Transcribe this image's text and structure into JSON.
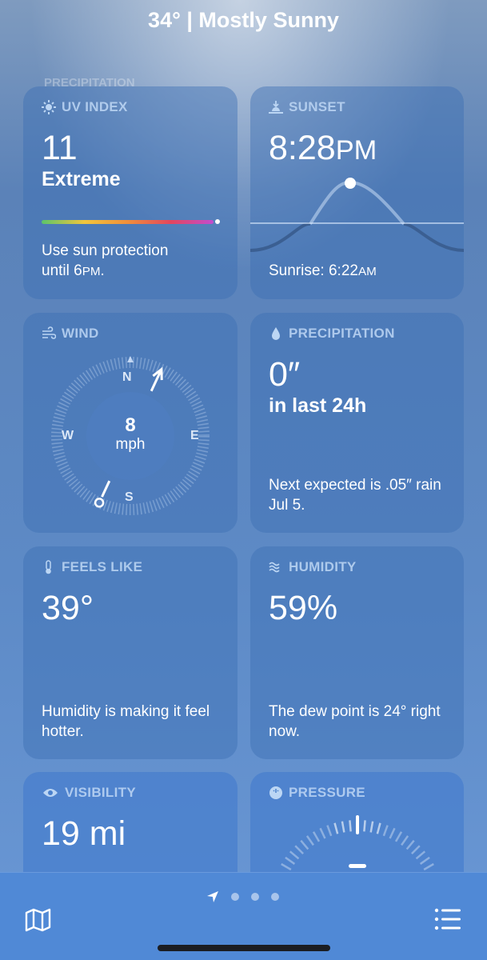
{
  "header": {
    "title": "34°  |  Mostly Sunny"
  },
  "ghost_label": "PRECIPITATION",
  "uv": {
    "label": "UV INDEX",
    "value": "11",
    "level": "Extreme",
    "level_fraction": 1.0,
    "desc1": "Use sun protection",
    "desc2": "until 6",
    "desc2_sc": "PM",
    "desc2_end": "."
  },
  "sunset": {
    "label": "SUNSET",
    "time": "8:28",
    "ampm": "PM",
    "sunrise_label": "Sunrise: 6:22",
    "sunrise_ampm": "AM"
  },
  "wind": {
    "label": "WIND",
    "speed": "8",
    "unit": "mph",
    "n": "N",
    "s": "S",
    "e": "E",
    "w": "W",
    "direction_deg": 205
  },
  "precip": {
    "label": "PRECIPITATION",
    "value": "0″",
    "sub": "in last 24h",
    "desc": "Next expected is .05″ rain Jul 5."
  },
  "feels": {
    "label": "FEELS LIKE",
    "value": "39°",
    "desc": "Humidity is making it feel hotter."
  },
  "humidity": {
    "label": "HUMIDITY",
    "value": "59%",
    "desc": "The dew point is 24° right now."
  },
  "visibility": {
    "label": "VISIBILITY",
    "value": "19 mi"
  },
  "pressure": {
    "label": "PRESSURE"
  },
  "tabbar": {
    "left_icon": "map-icon",
    "right_icon": "list-icon",
    "pages": 4,
    "current_page": 0
  }
}
